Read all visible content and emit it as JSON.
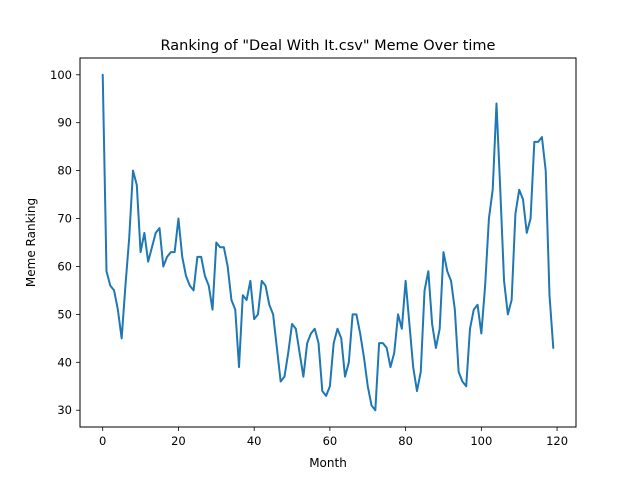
{
  "chart_data": {
    "type": "line",
    "title": "Ranking of \"Deal With It.csv\" Meme Over time",
    "xlabel": "Month",
    "ylabel": "Meme Ranking",
    "xlim": [
      -6,
      125
    ],
    "ylim": [
      26.5,
      103.5
    ],
    "xticks": [
      0,
      20,
      40,
      60,
      80,
      100,
      120
    ],
    "yticks": [
      30,
      40,
      50,
      60,
      70,
      80,
      90,
      100
    ],
    "grid": false,
    "line_color": "#1f77b4",
    "series": [
      {
        "x": [
          0,
          1,
          2,
          3,
          4,
          5,
          6,
          7,
          8,
          9,
          10,
          11,
          12,
          13,
          14,
          15,
          16,
          17,
          18,
          19,
          20,
          21,
          22,
          23,
          24,
          25,
          26,
          27,
          28,
          29,
          30,
          31,
          32,
          33,
          34,
          35,
          36,
          37,
          38,
          39,
          40,
          41,
          42,
          43,
          44,
          45,
          46,
          47,
          48,
          49,
          50,
          51,
          52,
          53,
          54,
          55,
          56,
          57,
          58,
          59,
          60,
          61,
          62,
          63,
          64,
          65,
          66,
          67,
          68,
          69,
          70,
          71,
          72,
          73,
          74,
          75,
          76,
          77,
          78,
          79,
          80,
          81,
          82,
          83,
          84,
          85,
          86,
          87,
          88,
          89,
          90,
          91,
          92,
          93,
          94,
          95,
          96,
          97,
          98,
          99,
          100,
          101,
          102,
          103,
          104,
          105,
          106,
          107,
          108,
          109,
          110,
          111,
          112,
          113,
          114,
          115,
          116,
          117,
          118,
          119
        ],
        "values": [
          100,
          59,
          56,
          55,
          51,
          45,
          56,
          66,
          80,
          77,
          63,
          67,
          61,
          64,
          67,
          68,
          60,
          62,
          63,
          63,
          70,
          62,
          58,
          56,
          55,
          62,
          62,
          58,
          56,
          51,
          65,
          64,
          64,
          60,
          53,
          51,
          39,
          54,
          53,
          57,
          49,
          50,
          57,
          56,
          52,
          50,
          43,
          36,
          37,
          42,
          48,
          47,
          42,
          37,
          44,
          46,
          47,
          44,
          34,
          33,
          35,
          44,
          47,
          45,
          37,
          40,
          50,
          50,
          46,
          41,
          35,
          31,
          30,
          44,
          44,
          43,
          39,
          42,
          50,
          47,
          57,
          48,
          39,
          34,
          38,
          55,
          59,
          48,
          43,
          47,
          63,
          59,
          57,
          51,
          38,
          36,
          35,
          47,
          51,
          52,
          46,
          56,
          70,
          76,
          94,
          76,
          57,
          50,
          53,
          71,
          76,
          74,
          67,
          70,
          86,
          86,
          87,
          80,
          54,
          43
        ]
      }
    ]
  }
}
